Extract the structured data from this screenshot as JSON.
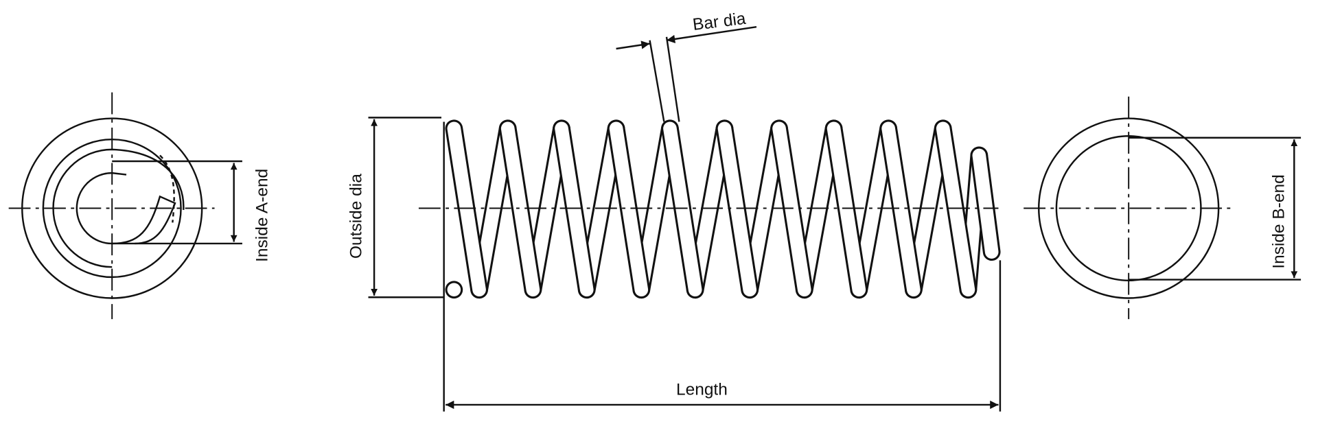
{
  "labels": {
    "bar_dia": "Bar dia",
    "outside_dia": "Outside dia",
    "length": "Length",
    "inside_a_end": "Inside A-end",
    "inside_b_end": "Inside B-end"
  },
  "colors": {
    "line": "#111111",
    "background": "#ffffff"
  }
}
